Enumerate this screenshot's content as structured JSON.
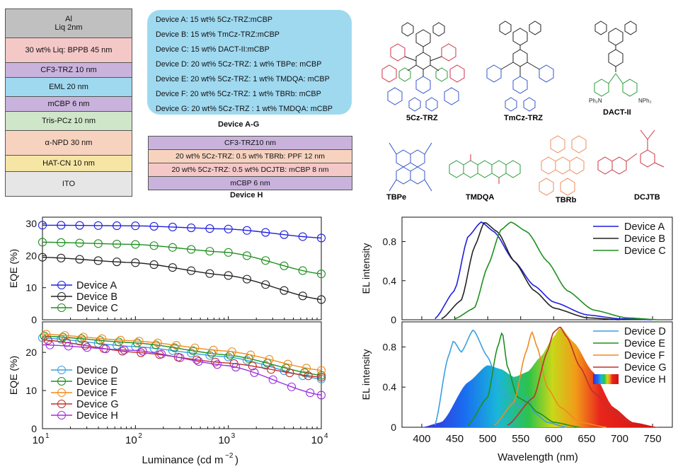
{
  "stack_layers": [
    {
      "label_1": "Al",
      "label_2": "Liq 2nm",
      "color": "#c0c0c0"
    },
    {
      "label_1": "30 wt% Liq: BPPB 45 nm",
      "color": "#f5c8c8"
    },
    {
      "label_1": "CF3-TRZ 10 nm",
      "color": "#c9b3dd"
    },
    {
      "label_1": "EML  20 nm",
      "color": "#9fd9f0"
    },
    {
      "label_1": "mCBP 6 nm",
      "color": "#c9b3dd"
    },
    {
      "label_1": "Tris-PCz 10 nm",
      "color": "#cfe6c8"
    },
    {
      "label_1": "α-NPD 30 nm",
      "color": "#f7d3bf"
    },
    {
      "label_1": "HAT-CN 10 nm",
      "color": "#f6e6a6"
    },
    {
      "label_1": "ITO",
      "color": "#e6e6e6"
    }
  ],
  "devices_ag": [
    "Device A: 15 wt% 5Cz-TRZ:mCBP",
    "Device B: 15 wt% TmCz-TRZ:mCBP",
    "Device C: 15 wt% DACT-II:mCBP",
    "Device D: 20 wt% 5Cz-TRZ:  1 wt% TBPe: mCBP",
    "Device E: 20 wt% 5Cz-TRZ:  1 wt% TMDQA: mCBP",
    "Device F: 20 wt% 5Cz-TRZ: 1 wt% TBRb: mCBP",
    "Device G: 20 wt% 5Cz-TRZ : 1 wt% TMDQA: mCBP"
  ],
  "caption_ag": "Device A-G",
  "device_h_layers": [
    {
      "label": "CF3-TRZ10 nm",
      "color": "#c9b3dd"
    },
    {
      "label": "20 wt% 5Cz-TRZ: 0.5 wt% TBRb: PPF 12 nm",
      "color": "#f7d3bf"
    },
    {
      "label": "20 wt% 5Cz-TRZ: 0.5 wt% DCJTB: mCBP 8 nm",
      "color": "#f5c8c8"
    },
    {
      "label": "mCBP 6 nm",
      "color": "#c9b3dd"
    }
  ],
  "caption_h": "Device H",
  "molecules": [
    "5Cz-TRZ",
    "TmCz-TRZ",
    "DACT-II",
    "TBPe",
    "TMDQA",
    "TBRb",
    "DCJTB"
  ],
  "chart_data": [
    {
      "type": "line",
      "ylabel": "EQE (%)",
      "xscale": "log",
      "xlim": [
        10,
        10000
      ],
      "ylim": [
        0,
        32
      ],
      "yticks": [
        "0",
        "10",
        "20",
        "30"
      ],
      "series": [
        {
          "name": "Device A",
          "color": "#1f1fdd",
          "x": [
            10,
            100,
            1000,
            10000
          ],
          "y": [
            29.5,
            29.3,
            28.3,
            25.5
          ]
        },
        {
          "name": "Device B",
          "color": "#222222",
          "x": [
            10,
            100,
            1000,
            10000
          ],
          "y": [
            19.5,
            17.8,
            13.8,
            6.3
          ]
        },
        {
          "name": "Device C",
          "color": "#1f8f1f",
          "x": [
            10,
            100,
            1000,
            10000
          ],
          "y": [
            24.2,
            23.5,
            21.0,
            14.3
          ]
        }
      ]
    },
    {
      "type": "line",
      "ylabel": "EQE (%)",
      "xlabel": "Luminance (cd m",
      "xlabel_sup": "−2",
      "xlabel_end": ")",
      "xscale": "log",
      "xlim": [
        10,
        10000
      ],
      "xticks": [
        "10",
        "10",
        "10",
        "10"
      ],
      "xtick_sups": [
        "1",
        "2",
        "3",
        "4"
      ],
      "ylim": [
        0,
        28
      ],
      "yticks": [
        "0",
        "10",
        "20"
      ],
      "series": [
        {
          "name": "Device D",
          "color": "#3aa0e0",
          "x": [
            10,
            100,
            1000,
            10000
          ],
          "y": [
            23.8,
            21.5,
            18.8,
            13.0
          ]
        },
        {
          "name": "Device E",
          "color": "#1f8f1f",
          "x": [
            10,
            100,
            1000,
            10000
          ],
          "y": [
            24.3,
            22.5,
            19.3,
            14.0
          ]
        },
        {
          "name": "Device F",
          "color": "#f08a1e",
          "x": [
            10,
            100,
            1000,
            10000
          ],
          "y": [
            24.8,
            23.0,
            20.3,
            15.3
          ]
        },
        {
          "name": "Device G",
          "color": "#c0302a",
          "x": [
            10,
            100,
            1000,
            10000
          ],
          "y": [
            23.3,
            20.0,
            17.2,
            13.5
          ]
        },
        {
          "name": "Device H",
          "color": "#9b30e0",
          "x": [
            10,
            100,
            1000,
            10000
          ],
          "y": [
            22.0,
            20.5,
            16.5,
            8.8
          ]
        }
      ]
    },
    {
      "type": "line",
      "ylabel": "EL intensity",
      "xlim": [
        370,
        780
      ],
      "ylim": [
        0,
        1.05
      ],
      "yticks": [
        "0",
        "0.4",
        "0.8"
      ],
      "series": [
        {
          "name": "Device A",
          "color": "#1f1fdd",
          "x": [
            420,
            450,
            470,
            490,
            510,
            540,
            570,
            600,
            650,
            700,
            750
          ],
          "y": [
            0.01,
            0.3,
            0.85,
            1.0,
            0.9,
            0.6,
            0.35,
            0.18,
            0.05,
            0.01,
            0
          ]
        },
        {
          "name": "Device B",
          "color": "#222222",
          "x": [
            430,
            460,
            480,
            495,
            515,
            540,
            570,
            600,
            650,
            700
          ],
          "y": [
            0.01,
            0.2,
            0.75,
            1.0,
            0.9,
            0.6,
            0.3,
            0.12,
            0.02,
            0
          ]
        },
        {
          "name": "Device C",
          "color": "#1f8f1f",
          "x": [
            450,
            480,
            500,
            520,
            535,
            560,
            590,
            620,
            660,
            710,
            760
          ],
          "y": [
            0.01,
            0.12,
            0.55,
            0.92,
            1.0,
            0.9,
            0.6,
            0.3,
            0.1,
            0.02,
            0
          ]
        }
      ]
    },
    {
      "type": "area",
      "ylabel": "EL intensity",
      "xlabel": "Wavelength (nm)",
      "xlim": [
        370,
        780
      ],
      "xticks": [
        "400",
        "450",
        "500",
        "550",
        "600",
        "650",
        "700",
        "750"
      ],
      "ylim": [
        0,
        1.05
      ],
      "yticks": [
        "0",
        "0.4",
        "0.8"
      ],
      "series": [
        {
          "name": "Device D",
          "color": "#3aa0e0",
          "x": [
            420,
            440,
            448,
            460,
            478,
            500,
            520,
            550,
            560,
            570,
            590,
            620
          ],
          "y": [
            0.02,
            0.7,
            0.86,
            0.75,
            0.97,
            0.7,
            0.35,
            0.2,
            0.3,
            0.15,
            0.05,
            0
          ]
        },
        {
          "name": "Device E",
          "color": "#1f8f1f",
          "x": [
            470,
            500,
            515,
            522,
            530,
            545,
            560,
            575,
            600,
            640
          ],
          "y": [
            0.02,
            0.3,
            0.8,
            0.95,
            0.6,
            0.3,
            0.25,
            0.15,
            0.05,
            0
          ]
        },
        {
          "name": "Device F",
          "color": "#f08a1e",
          "x": [
            510,
            540,
            558,
            567,
            575,
            590,
            610,
            640,
            680
          ],
          "y": [
            0.02,
            0.25,
            0.75,
            0.95,
            0.8,
            0.4,
            0.2,
            0.05,
            0
          ]
        },
        {
          "name": "Device G",
          "color": "#c0302a",
          "x": [
            530,
            570,
            590,
            600,
            610,
            620,
            640,
            660,
            690,
            720
          ],
          "y": [
            0.02,
            0.3,
            0.75,
            0.95,
            1.0,
            0.9,
            0.6,
            0.35,
            0.15,
            0.03
          ]
        },
        {
          "name": "Device H",
          "color": "spectrum",
          "x": [
            400,
            430,
            470,
            500,
            520,
            540,
            560,
            580,
            600,
            610,
            630,
            660,
            690,
            720,
            760
          ],
          "y": [
            0,
            0.05,
            0.45,
            0.62,
            0.58,
            0.5,
            0.55,
            0.7,
            0.9,
            1.0,
            0.85,
            0.55,
            0.2,
            0.05,
            0
          ]
        }
      ]
    }
  ]
}
